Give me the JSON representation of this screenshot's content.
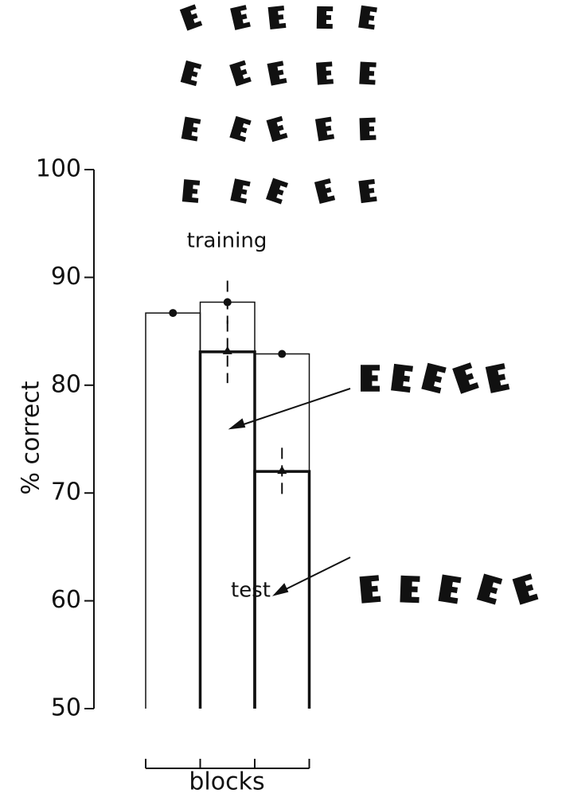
{
  "chart_data": {
    "type": "bar",
    "y_label": "% correct",
    "x_label": "blocks",
    "categories": [
      null,
      null,
      null
    ],
    "ylim": [
      50,
      100
    ],
    "yticks": [
      50,
      60,
      70,
      80,
      90,
      100
    ],
    "series": [
      {
        "name": "training",
        "color": "#111111",
        "values": [
          86.7,
          87.7,
          82.9
        ],
        "errors": [
          null,
          2.0,
          null
        ]
      },
      {
        "name": "test",
        "color": "#111111",
        "values": [
          null,
          83.1,
          72.0
        ],
        "errors": [
          null,
          2.9,
          2.2
        ]
      }
    ]
  }
}
